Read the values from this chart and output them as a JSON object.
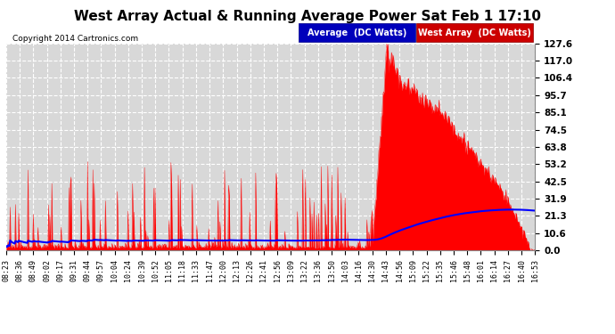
{
  "title": "West Array Actual & Running Average Power Sat Feb 1 17:10",
  "copyright": "Copyright 2014 Cartronics.com",
  "legend_labels": [
    "Average  (DC Watts)",
    "West Array  (DC Watts)"
  ],
  "yticks": [
    0.0,
    10.6,
    21.3,
    31.9,
    42.5,
    53.2,
    63.8,
    74.5,
    85.1,
    95.7,
    106.4,
    117.0,
    127.6
  ],
  "ymax": 127.6,
  "bg_color": "#ffffff",
  "plot_bg_color": "#d8d8d8",
  "grid_color": "#ffffff",
  "title_fontsize": 11,
  "xtick_labels": [
    "08:23",
    "08:36",
    "08:49",
    "09:02",
    "09:17",
    "09:31",
    "09:44",
    "09:57",
    "10:04",
    "10:24",
    "10:39",
    "10:52",
    "11:05",
    "11:18",
    "11:33",
    "11:47",
    "12:00",
    "12:13",
    "12:26",
    "12:41",
    "12:56",
    "13:09",
    "13:22",
    "13:36",
    "13:50",
    "14:03",
    "14:16",
    "14:30",
    "14:43",
    "14:56",
    "15:09",
    "15:22",
    "15:35",
    "15:46",
    "15:48",
    "16:01",
    "16:14",
    "16:27",
    "16:40",
    "16:53"
  ]
}
